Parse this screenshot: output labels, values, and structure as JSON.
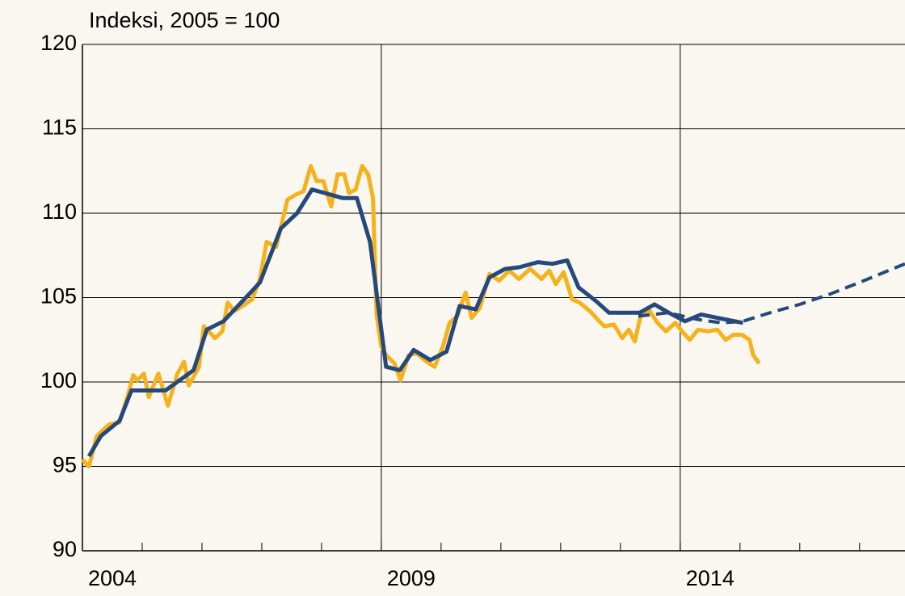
{
  "chart_data": {
    "type": "line",
    "title": "Indeksi, 2005 = 100",
    "xlim": [
      2004,
      2017.76
    ],
    "xticks": [
      {
        "value": 2004.5,
        "label": "2004"
      },
      {
        "value": 2009.5,
        "label": "2009"
      },
      {
        "value": 2014.5,
        "label": "2014"
      }
    ],
    "xtickmarks": [
      2005,
      2006,
      2007,
      2008,
      2009,
      2010,
      2011,
      2012,
      2013,
      2014,
      2015,
      2016,
      2017
    ],
    "xgrid": [
      2009,
      2014
    ],
    "ylim": [
      90,
      120
    ],
    "yticks": [
      90,
      95,
      100,
      105,
      110,
      115,
      120
    ],
    "grid": true,
    "series": [
      {
        "color": "#f5b21b",
        "dash": false,
        "x": [
          2004.0,
          2004.11,
          2004.24,
          2004.45,
          2004.62,
          2004.76,
          2004.85,
          2004.92,
          2005.03,
          2005.11,
          2005.27,
          2005.43,
          2005.59,
          2005.7,
          2005.78,
          2005.95,
          2006.03,
          2006.22,
          2006.34,
          2006.43,
          2006.54,
          2006.68,
          2006.84,
          2006.97,
          2007.08,
          2007.24,
          2007.43,
          2007.57,
          2007.7,
          2007.82,
          2007.92,
          2008.03,
          2008.16,
          2008.27,
          2008.38,
          2008.46,
          2008.57,
          2008.68,
          2008.78,
          2008.86,
          2008.92,
          2009.0,
          2009.08,
          2009.22,
          2009.32,
          2009.46,
          2009.59,
          2009.76,
          2009.89,
          2010.03,
          2010.14,
          2010.27,
          2010.41,
          2010.51,
          2010.65,
          2010.81,
          2010.97,
          2011.14,
          2011.3,
          2011.49,
          2011.68,
          2011.81,
          2011.92,
          2012.05,
          2012.19,
          2012.32,
          2012.49,
          2012.62,
          2012.73,
          2012.89,
          2013.03,
          2013.14,
          2013.24,
          2013.35,
          2013.49,
          2013.62,
          2013.76,
          2013.92,
          2014.03,
          2014.16,
          2014.3,
          2014.46,
          2014.62,
          2014.76,
          2014.89,
          2015.03,
          2015.16,
          2015.22,
          2015.32
        ],
        "values": [
          95.4,
          95.0,
          96.8,
          97.5,
          97.6,
          99.2,
          100.4,
          100.1,
          100.5,
          99.1,
          100.5,
          98.6,
          100.5,
          101.2,
          99.8,
          100.9,
          103.3,
          102.6,
          103.0,
          104.7,
          104.2,
          104.5,
          104.9,
          106.1,
          108.3,
          108.0,
          110.8,
          111.1,
          111.3,
          112.8,
          111.9,
          111.9,
          110.4,
          112.3,
          112.3,
          111.2,
          111.4,
          112.8,
          112.3,
          110.9,
          104.0,
          102.1,
          101.6,
          101.1,
          100.1,
          101.6,
          101.7,
          101.2,
          100.9,
          102.1,
          103.5,
          103.9,
          105.3,
          103.8,
          104.4,
          106.4,
          106.0,
          106.6,
          106.1,
          106.7,
          106.1,
          106.6,
          105.8,
          106.5,
          104.9,
          104.7,
          104.2,
          103.7,
          103.3,
          103.4,
          102.6,
          103.1,
          102.4,
          104.1,
          104.2,
          103.5,
          103.0,
          103.5,
          103.0,
          102.5,
          103.1,
          103.0,
          103.1,
          102.5,
          102.8,
          102.8,
          102.5,
          101.6,
          101.1
        ]
      },
      {
        "color": "#24497a",
        "dash": true,
        "x": [
          2013.3,
          2013.8,
          2014.3,
          2014.7,
          2015.05,
          2015.5,
          2016,
          2016.5,
          2017,
          2017.76
        ],
        "values": [
          103.9,
          104.1,
          103.7,
          103.5,
          103.6,
          104.1,
          104.6,
          105.2,
          105.9,
          107.0
        ]
      },
      {
        "color": "#24497a",
        "dash": false,
        "x": [
          2004.11,
          2004.31,
          2004.62,
          2004.82,
          2005.39,
          2005.86,
          2006.08,
          2006.36,
          2006.84,
          2006.97,
          2007.32,
          2007.59,
          2007.84,
          2008.05,
          2008.35,
          2008.59,
          2008.81,
          2009.08,
          2009.31,
          2009.54,
          2009.82,
          2010.09,
          2010.31,
          2010.58,
          2010.81,
          2011.07,
          2011.31,
          2011.62,
          2011.86,
          2012.11,
          2012.3,
          2012.59,
          2012.81,
          2013.32,
          2013.57,
          2013.81,
          2014.08,
          2014.35,
          2014.62,
          2015.05
        ],
        "values": [
          95.6,
          96.8,
          97.7,
          99.5,
          99.5,
          100.7,
          103.1,
          103.6,
          105.4,
          105.9,
          109.1,
          110.0,
          111.4,
          111.2,
          110.9,
          110.9,
          108.3,
          100.9,
          100.7,
          101.9,
          101.3,
          101.8,
          104.5,
          104.3,
          106.2,
          106.7,
          106.8,
          107.1,
          107.0,
          107.2,
          105.6,
          104.8,
          104.1,
          104.1,
          104.6,
          104.1,
          103.6,
          104.0,
          103.8,
          103.5
        ]
      }
    ]
  }
}
